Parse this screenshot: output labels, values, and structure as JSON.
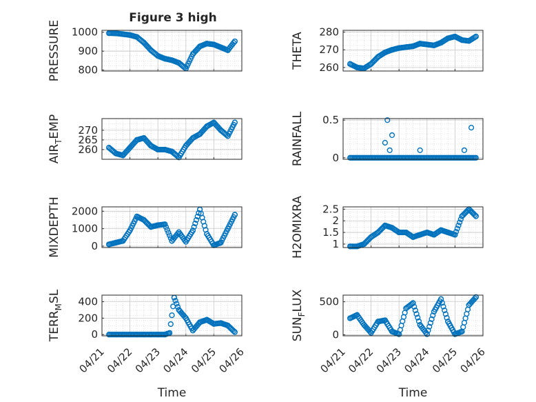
{
  "title": "Figure 3 high",
  "colors": {
    "marker": "#0072BD",
    "axis": "#262626",
    "grid": "#c8c8c8",
    "background": "#ffffff"
  },
  "chart_data": [
    {
      "type": "scatter",
      "ylabel": "PRESSURE",
      "ylim": [
        795,
        1010
      ],
      "yticks": [
        800,
        900,
        1000
      ],
      "ytick_labels": [
        "800",
        "900",
        "1000"
      ],
      "xlabel": "",
      "grid": true,
      "x": [
        "2021-04-21 06:00",
        "2021-04-21 12:00",
        "2021-04-21 18:00",
        "2021-04-22 00:00",
        "2021-04-22 06:00",
        "2021-04-22 12:00",
        "2021-04-22 18:00",
        "2021-04-23 00:00",
        "2021-04-23 06:00",
        "2021-04-23 12:00",
        "2021-04-23 18:00",
        "2021-04-24 00:00",
        "2021-04-24 06:00",
        "2021-04-24 12:00",
        "2021-04-24 18:00",
        "2021-04-25 00:00",
        "2021-04-25 06:00",
        "2021-04-25 12:00",
        "2021-04-25 18:00"
      ],
      "y": [
        995,
        994,
        990,
        985,
        975,
        945,
        905,
        875,
        860,
        852,
        838,
        808,
        885,
        925,
        940,
        935,
        920,
        905,
        952
      ]
    },
    {
      "type": "scatter",
      "ylabel": "THETA",
      "ylim": [
        258,
        281
      ],
      "yticks": [
        260,
        270,
        280
      ],
      "ytick_labels": [
        "260",
        "270",
        "280"
      ],
      "xlabel": "",
      "grid": true,
      "x": [
        "2021-04-21 06:00",
        "2021-04-21 12:00",
        "2021-04-21 18:00",
        "2021-04-22 00:00",
        "2021-04-22 06:00",
        "2021-04-22 12:00",
        "2021-04-22 18:00",
        "2021-04-23 00:00",
        "2021-04-23 06:00",
        "2021-04-23 12:00",
        "2021-04-23 18:00",
        "2021-04-24 00:00",
        "2021-04-24 06:00",
        "2021-04-24 12:00",
        "2021-04-24 18:00",
        "2021-04-25 00:00",
        "2021-04-25 06:00",
        "2021-04-25 12:00",
        "2021-04-25 18:00"
      ],
      "y": [
        262,
        260,
        259.5,
        262,
        266,
        268.5,
        270,
        271,
        271.5,
        272,
        273.5,
        273,
        272.5,
        274,
        276.5,
        277.5,
        275.5,
        275,
        277.5
      ]
    },
    {
      "type": "scatter",
      "ylabel": "AIR_TEMP",
      "ylim": [
        255,
        276
      ],
      "yticks": [
        260,
        265,
        270
      ],
      "ytick_labels": [
        "260",
        "265",
        "270"
      ],
      "xlabel": "",
      "grid": true,
      "x": [
        "2021-04-21 06:00",
        "2021-04-21 12:00",
        "2021-04-21 18:00",
        "2021-04-22 00:00",
        "2021-04-22 06:00",
        "2021-04-22 12:00",
        "2021-04-22 18:00",
        "2021-04-23 00:00",
        "2021-04-23 06:00",
        "2021-04-23 12:00",
        "2021-04-23 18:00",
        "2021-04-24 00:00",
        "2021-04-24 06:00",
        "2021-04-24 12:00",
        "2021-04-24 18:00",
        "2021-04-25 00:00",
        "2021-04-25 06:00",
        "2021-04-25 12:00",
        "2021-04-25 18:00"
      ],
      "y": [
        261,
        258,
        257,
        261,
        265,
        266,
        262,
        260,
        260,
        259,
        256,
        262,
        266,
        268,
        272,
        274,
        270,
        267,
        274
      ]
    },
    {
      "type": "scatter",
      "ylabel": "RAINFALL",
      "ylim": [
        -0.02,
        0.52
      ],
      "yticks": [
        0,
        0.5
      ],
      "ytick_labels": [
        "0",
        "0.5"
      ],
      "xlabel": "",
      "grid": true,
      "x": [
        "2021-04-21 06:00",
        "2021-04-21 18:00",
        "2021-04-22 06:00",
        "2021-04-22 12:00",
        "2021-04-22 14:00",
        "2021-04-22 16:00",
        "2021-04-22 18:00",
        "2021-04-22 20:00",
        "2021-04-23 06:00",
        "2021-04-23 18:00",
        "2021-04-24 06:00",
        "2021-04-24 18:00",
        "2021-04-25 06:00",
        "2021-04-25 08:00",
        "2021-04-25 14:00",
        "2021-04-25 18:00"
      ],
      "y": [
        0,
        0,
        0,
        0.2,
        0.5,
        0.1,
        0.3,
        0,
        0,
        0.1,
        0,
        0,
        0,
        0.1,
        0.4,
        0
      ]
    },
    {
      "type": "scatter",
      "ylabel": "MIXDEPTH",
      "ylim": [
        -80,
        2250
      ],
      "yticks": [
        0,
        1000,
        2000
      ],
      "ytick_labels": [
        "0",
        "1000",
        "2000"
      ],
      "xlabel": "",
      "grid": true,
      "x": [
        "2021-04-21 06:00",
        "2021-04-21 12:00",
        "2021-04-21 18:00",
        "2021-04-22 00:00",
        "2021-04-22 06:00",
        "2021-04-22 12:00",
        "2021-04-22 18:00",
        "2021-04-23 00:00",
        "2021-04-23 06:00",
        "2021-04-23 12:00",
        "2021-04-23 18:00",
        "2021-04-24 00:00",
        "2021-04-24 06:00",
        "2021-04-24 12:00",
        "2021-04-24 18:00",
        "2021-04-25 00:00",
        "2021-04-25 06:00",
        "2021-04-25 12:00",
        "2021-04-25 18:00"
      ],
      "y": [
        100,
        200,
        300,
        900,
        1700,
        1500,
        1100,
        1200,
        1250,
        300,
        800,
        250,
        900,
        2100,
        700,
        50,
        200,
        1000,
        1800
      ]
    },
    {
      "type": "scatter",
      "ylabel": "H2OMIXRA",
      "ylim": [
        0.85,
        2.6
      ],
      "yticks": [
        1,
        1.5,
        2,
        2.5
      ],
      "ytick_labels": [
        "1",
        "1.5",
        "2",
        "2.5"
      ],
      "xlabel": "",
      "grid": true,
      "x": [
        "2021-04-21 06:00",
        "2021-04-21 12:00",
        "2021-04-21 18:00",
        "2021-04-22 00:00",
        "2021-04-22 06:00",
        "2021-04-22 12:00",
        "2021-04-22 18:00",
        "2021-04-23 00:00",
        "2021-04-23 06:00",
        "2021-04-23 12:00",
        "2021-04-23 18:00",
        "2021-04-24 00:00",
        "2021-04-24 06:00",
        "2021-04-24 12:00",
        "2021-04-24 18:00",
        "2021-04-25 00:00",
        "2021-04-25 06:00",
        "2021-04-25 12:00",
        "2021-04-25 18:00"
      ],
      "y": [
        0.9,
        0.9,
        1.0,
        1.3,
        1.5,
        1.8,
        1.7,
        1.5,
        1.5,
        1.3,
        1.4,
        1.5,
        1.4,
        1.6,
        1.5,
        1.4,
        2.2,
        2.5,
        2.2
      ]
    },
    {
      "type": "scatter",
      "ylabel": "TERR_MSL",
      "ylim": [
        -15,
        480
      ],
      "yticks": [
        0,
        200,
        400
      ],
      "ytick_labels": [
        "0",
        "200",
        "400"
      ],
      "xlabel": "Time",
      "xtick_labels": [
        "04/21",
        "04/22",
        "04/23",
        "04/24",
        "04/25",
        "04/26"
      ],
      "grid": true,
      "x": [
        "2021-04-21 06:00",
        "2021-04-21 12:00",
        "2021-04-21 18:00",
        "2021-04-22 00:00",
        "2021-04-22 06:00",
        "2021-04-22 12:00",
        "2021-04-22 18:00",
        "2021-04-23 00:00",
        "2021-04-23 06:00",
        "2021-04-23 10:00",
        "2021-04-23 14:00",
        "2021-04-23 18:00",
        "2021-04-24 00:00",
        "2021-04-24 06:00",
        "2021-04-24 12:00",
        "2021-04-24 18:00",
        "2021-04-25 00:00",
        "2021-04-25 06:00",
        "2021-04-25 12:00",
        "2021-04-25 18:00"
      ],
      "y": [
        0,
        0,
        0,
        0,
        0,
        0,
        0,
        0,
        0,
        20,
        450,
        300,
        200,
        50,
        150,
        180,
        130,
        140,
        110,
        30
      ]
    },
    {
      "type": "scatter",
      "ylabel": "SUN_FLUX",
      "ylim": [
        -15,
        600
      ],
      "yticks": [
        0,
        500
      ],
      "ytick_labels": [
        "0",
        "500"
      ],
      "xlabel": "Time",
      "xtick_labels": [
        "04/21",
        "04/22",
        "04/23",
        "04/24",
        "04/25",
        "04/26"
      ],
      "grid": true,
      "x": [
        "2021-04-21 06:00",
        "2021-04-21 12:00",
        "2021-04-21 18:00",
        "2021-04-22 00:00",
        "2021-04-22 06:00",
        "2021-04-22 12:00",
        "2021-04-22 18:00",
        "2021-04-23 00:00",
        "2021-04-23 06:00",
        "2021-04-23 12:00",
        "2021-04-23 18:00",
        "2021-04-24 00:00",
        "2021-04-24 06:00",
        "2021-04-24 12:00",
        "2021-04-24 18:00",
        "2021-04-25 00:00",
        "2021-04-25 06:00",
        "2021-04-25 12:00",
        "2021-04-25 18:00"
      ],
      "y": [
        250,
        300,
        150,
        30,
        200,
        220,
        50,
        10,
        400,
        480,
        150,
        10,
        350,
        540,
        200,
        10,
        50,
        450,
        570
      ]
    }
  ]
}
